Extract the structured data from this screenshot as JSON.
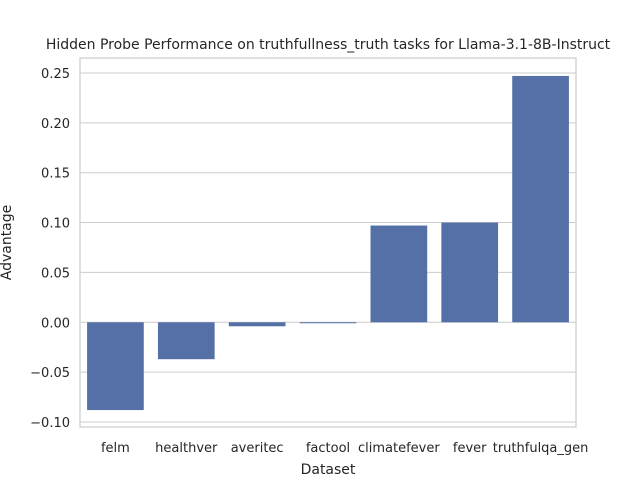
{
  "chart_data": {
    "type": "bar",
    "title": "Hidden Probe Performance on truthfullness_truth tasks for Llama-3.1-8B-Instruct",
    "xlabel": "Dataset",
    "ylabel": "Advantage",
    "categories": [
      "felm",
      "healthver",
      "averitec",
      "factool",
      "climatefever",
      "fever",
      "truthfulqa_gen"
    ],
    "values": [
      -0.088,
      -0.037,
      -0.004,
      -0.001,
      0.097,
      0.1,
      0.247
    ],
    "ylim": [
      -0.105,
      0.265
    ],
    "yticks": [
      -0.1,
      -0.05,
      0.0,
      0.05,
      0.1,
      0.15,
      0.2,
      0.25
    ],
    "ytick_labels": [
      "−0.10",
      "−0.05",
      "0.00",
      "0.05",
      "0.10",
      "0.15",
      "0.20",
      "0.25"
    ],
    "grid": "y",
    "bar_color": "#5470a6",
    "grid_color": "#cccccc",
    "spine_color": "#cccccc"
  }
}
